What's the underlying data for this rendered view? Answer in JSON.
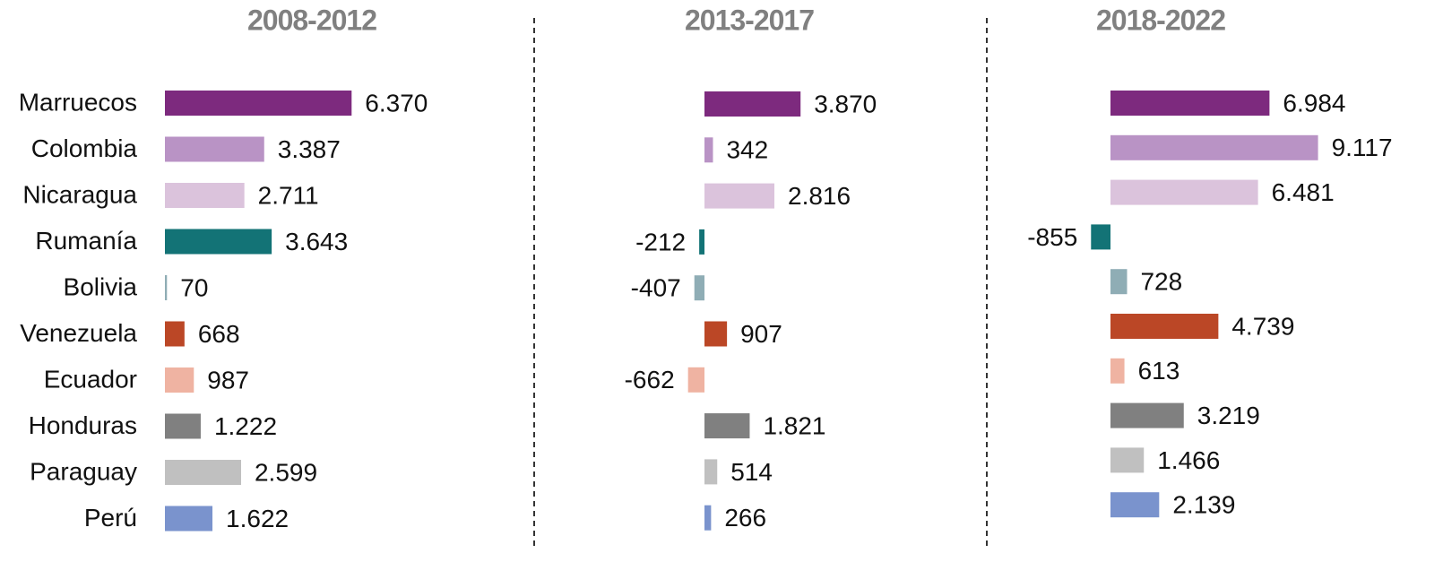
{
  "chart_data": {
    "type": "bar",
    "orientation": "horizontal",
    "categories": [
      "Marruecos",
      "Colombia",
      "Nicaragua",
      "Rumanía",
      "Bolivia",
      "Venezuela",
      "Ecuador",
      "Honduras",
      "Paraguay",
      "Perú"
    ],
    "colors": [
      "#7d2a7e",
      "#b993c5",
      "#dbc3dc",
      "#137376",
      "#8fadb5",
      "#bb4726",
      "#efb3a2",
      "#808080",
      "#c0c0c0",
      "#7a93cd"
    ],
    "series": [
      {
        "name": "2008-2012",
        "values": [
          6370,
          3387,
          2711,
          3643,
          70,
          668,
          987,
          1222,
          2599,
          1622
        ],
        "value_labels": [
          "6.370",
          "3.387",
          "2.711",
          "3.643",
          "70",
          "668",
          "987",
          "1.222",
          "2.599",
          "1.622"
        ]
      },
      {
        "name": "2013-2017",
        "values": [
          3870,
          342,
          2816,
          -212,
          -407,
          907,
          -662,
          1821,
          514,
          266
        ],
        "value_labels": [
          "3.870",
          "342",
          "2.816",
          "-212",
          "-407",
          "907",
          "-662",
          "1.821",
          "514",
          "266"
        ]
      },
      {
        "name": "2018-2022",
        "values": [
          6984,
          9117,
          6481,
          -855,
          728,
          4739,
          613,
          3219,
          1466,
          2139
        ],
        "value_labels": [
          "6.984",
          "9.117",
          "6.481",
          "-855",
          "728",
          "4.739",
          "613",
          "3.219",
          "1.466",
          "2.139"
        ]
      }
    ]
  }
}
